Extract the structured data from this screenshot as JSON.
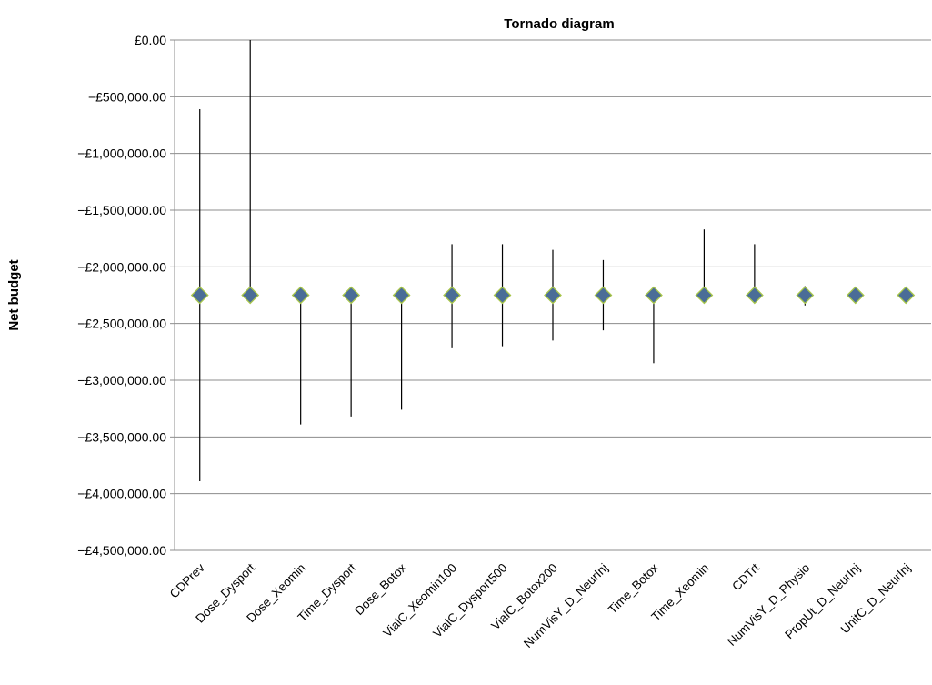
{
  "chart_data": {
    "type": "scatter",
    "title": "Tornado diagram",
    "xlabel": "",
    "ylabel": "Net budget",
    "ylim": [
      -4500000,
      0
    ],
    "ytick_values": [
      0,
      -500000,
      -1000000,
      -1500000,
      -2000000,
      -2500000,
      -3000000,
      -3500000,
      -4000000,
      -4500000
    ],
    "ytick_labels": [
      "£0.00",
      "−£500,000.00",
      "−£1,000,000.00",
      "−£1,500,000.00",
      "−£2,000,000.00",
      "−£2,500,000.00",
      "−£3,000,000.00",
      "−£3,500,000.00",
      "−£4,000,000.00",
      "−£4,500,000.00"
    ],
    "grid": true,
    "categories": [
      "CDPrev",
      "Dose_Dysport",
      "Dose_Xeomin",
      "Time_Dysport",
      "Dose_Botox",
      "VialC_Xeomin100",
      "VialC_Dysport500",
      "VialC_Botox200",
      "NumVisY_D_NeurInj",
      "Time_Botox",
      "Time_Xeomin",
      "CDTrt",
      "NumVisY_D_Physio",
      "PropUt_D_NeurInj",
      "UnitC_D_NeurInj"
    ],
    "base": [
      -2250000,
      -2250000,
      -2250000,
      -2250000,
      -2250000,
      -2250000,
      -2250000,
      -2250000,
      -2250000,
      -2250000,
      -2250000,
      -2250000,
      -2250000,
      -2250000,
      -2250000
    ],
    "high": [
      -610000,
      0,
      -2250000,
      -2250000,
      -2250000,
      -1800000,
      -1800000,
      -1850000,
      -1940000,
      -2250000,
      -1670000,
      -1800000,
      -2170000,
      -2250000,
      -2250000
    ],
    "low": [
      -3890000,
      -2250000,
      -3390000,
      -3320000,
      -3260000,
      -2710000,
      -2700000,
      -2650000,
      -2560000,
      -2850000,
      -2250000,
      -2250000,
      -2340000,
      -2250000,
      -2250000
    ],
    "point_fill": "#4a6d97",
    "point_stroke": "#a8c64a",
    "range_color": "#000000",
    "grid_color": "#8c8c8c"
  }
}
